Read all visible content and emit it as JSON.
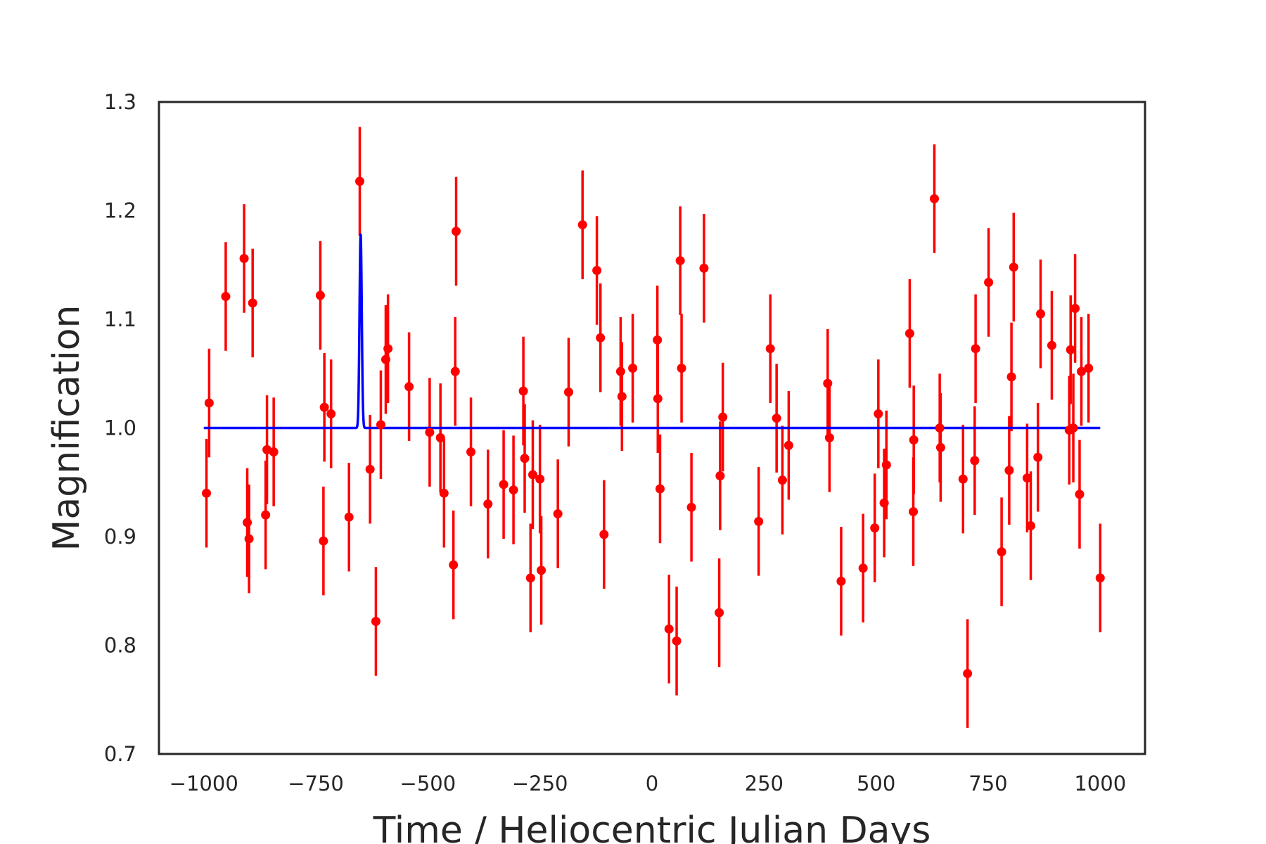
{
  "chart_data": {
    "type": "scatter",
    "title": "",
    "xlabel": "Time / Heliocentric Julian Days",
    "ylabel": "Magnification",
    "xlim": [
      -1100,
      1100
    ],
    "ylim": [
      0.7,
      1.3
    ],
    "grid": false,
    "x_ticks": [
      -1000,
      -750,
      -500,
      -250,
      0,
      250,
      500,
      750,
      1000
    ],
    "x_tick_labels": [
      "−1000",
      "−750",
      "−500",
      "−250",
      "0",
      "250",
      "500",
      "750",
      "1000"
    ],
    "y_ticks": [
      0.7,
      0.8,
      0.9,
      1.0,
      1.1,
      1.2,
      1.3
    ],
    "y_tick_labels": [
      "0.7",
      "0.8",
      "0.9",
      "1.0",
      "1.1",
      "1.2",
      "1.3"
    ],
    "colors": {
      "data": "#ff0000",
      "model": "#0000ff",
      "frame": "#262626"
    },
    "model": {
      "baseline": 1.0,
      "x_range": [
        -1000,
        1000
      ],
      "peak_x": -650,
      "peak_value": 1.178,
      "peak_width": 2.5
    },
    "observations": {
      "error": 0.05,
      "points": [
        [
          -994,
          0.94
        ],
        [
          -988,
          1.023
        ],
        [
          -951,
          1.121
        ],
        [
          -910,
          1.156
        ],
        [
          -903,
          0.913
        ],
        [
          -899,
          0.898
        ],
        [
          -891,
          1.115
        ],
        [
          -862,
          0.92
        ],
        [
          -859,
          0.98
        ],
        [
          -844,
          0.978
        ],
        [
          -740,
          1.122
        ],
        [
          -733,
          0.896
        ],
        [
          -731,
          1.019
        ],
        [
          -716,
          1.013
        ],
        [
          -676,
          0.918
        ],
        [
          -652,
          1.227
        ],
        [
          -629,
          0.962
        ],
        [
          -616,
          0.822
        ],
        [
          -605,
          1.003
        ],
        [
          -594,
          1.063
        ],
        [
          -589,
          1.073
        ],
        [
          -542,
          1.038
        ],
        [
          -496,
          0.996
        ],
        [
          -472,
          0.991
        ],
        [
          -464,
          0.94
        ],
        [
          -443,
          0.874
        ],
        [
          -439,
          1.052
        ],
        [
          -437,
          1.181
        ],
        [
          -404,
          0.978
        ],
        [
          -366,
          0.93
        ],
        [
          -331,
          0.948
        ],
        [
          -309,
          0.943
        ],
        [
          -287,
          1.034
        ],
        [
          -284,
          0.972
        ],
        [
          -271,
          0.862
        ],
        [
          -266,
          0.957
        ],
        [
          -250,
          0.953
        ],
        [
          -247,
          0.869
        ],
        [
          -210,
          0.921
        ],
        [
          -186,
          1.033
        ],
        [
          -155,
          1.187
        ],
        [
          -123,
          1.145
        ],
        [
          -115,
          1.083
        ],
        [
          -107,
          0.902
        ],
        [
          -70,
          1.052
        ],
        [
          -67,
          1.029
        ],
        [
          -43,
          1.055
        ],
        [
          12,
          1.081
        ],
        [
          13,
          1.027
        ],
        [
          18,
          0.944
        ],
        [
          38,
          0.815
        ],
        [
          55,
          0.804
        ],
        [
          63,
          1.154
        ],
        [
          66,
          1.055
        ],
        [
          88,
          0.927
        ],
        [
          116,
          1.147
        ],
        [
          150,
          0.83
        ],
        [
          152,
          0.956
        ],
        [
          158,
          1.01
        ],
        [
          238,
          0.914
        ],
        [
          264,
          1.073
        ],
        [
          278,
          1.009
        ],
        [
          291,
          0.952
        ],
        [
          305,
          0.984
        ],
        [
          392,
          1.041
        ],
        [
          396,
          0.991
        ],
        [
          422,
          0.859
        ],
        [
          471,
          0.871
        ],
        [
          497,
          0.908
        ],
        [
          505,
          1.013
        ],
        [
          518,
          0.931
        ],
        [
          523,
          0.966
        ],
        [
          575,
          1.087
        ],
        [
          583,
          0.923
        ],
        [
          584,
          0.989
        ],
        [
          630,
          1.211
        ],
        [
          642,
          1.0
        ],
        [
          644,
          0.982
        ],
        [
          694,
          0.953
        ],
        [
          704,
          0.774
        ],
        [
          720,
          0.97
        ],
        [
          722,
          1.073
        ],
        [
          751,
          1.134
        ],
        [
          780,
          0.886
        ],
        [
          797,
          0.961
        ],
        [
          802,
          1.047
        ],
        [
          807,
          1.148
        ],
        [
          837,
          0.954
        ],
        [
          845,
          0.91
        ],
        [
          861,
          0.973
        ],
        [
          867,
          1.105
        ],
        [
          892,
          1.076
        ],
        [
          931,
          0.998
        ],
        [
          934,
          1.072
        ],
        [
          940,
          1.0
        ],
        [
          944,
          1.11
        ],
        [
          954,
          0.939
        ],
        [
          958,
          1.052
        ],
        [
          974,
          1.055
        ],
        [
          1000,
          0.862
        ]
      ]
    }
  }
}
